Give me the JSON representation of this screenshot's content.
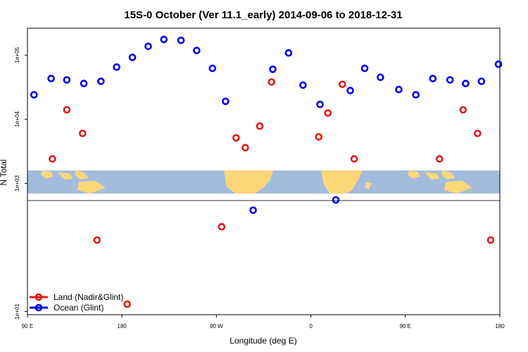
{
  "chart_data": {
    "type": "scatter",
    "title": "15S-0 October (Ver 11.1_early)   2014-09-06 to 2018-12-31",
    "xlabel": "Longitude (deg E)",
    "ylabel": "N Total",
    "y_scale": "log",
    "xlim": [
      90,
      450
    ],
    "ylim_log10": [
      0.95,
      5.42
    ],
    "x_ticks": [
      90,
      162,
      234,
      306,
      378,
      450
    ],
    "x_tick_labels": [
      "90 E",
      "180",
      "90 W",
      "0",
      "90 E",
      "180"
    ],
    "y_ticks": [
      10,
      1000,
      10000,
      100000
    ],
    "y_tick_labels": [
      "1e+01",
      "1e+03",
      "1e+04",
      "1e+05"
    ],
    "map_strip_log10": [
      2.84,
      3.2
    ],
    "colors": {
      "land": "#e41a1c",
      "ocean": "#0000ee",
      "map_ocean": "#a4bcdc",
      "map_land": "#fcd77a"
    },
    "legend": {
      "position": "bottom-left"
    },
    "series": [
      {
        "name": "Land (Nadir&Glint)",
        "color": "#e41a1c",
        "points": [
          [
            109,
            2400
          ],
          [
            120,
            14000
          ],
          [
            132,
            6000
          ],
          [
            143,
            130
          ],
          [
            166,
            13
          ],
          [
            238,
            210
          ],
          [
            249,
            5100
          ],
          [
            256,
            3600
          ],
          [
            267,
            7800
          ],
          [
            276,
            38000
          ],
          [
            312,
            5300
          ],
          [
            319,
            12500
          ],
          [
            330,
            35000
          ],
          [
            339,
            2400
          ],
          [
            404,
            2400
          ],
          [
            422,
            14000
          ],
          [
            433,
            6000
          ],
          [
            443,
            130
          ]
        ]
      },
      {
        "name": "Ocean (Glint)",
        "color": "#0000ee",
        "points": [
          [
            95,
            24000
          ],
          [
            108,
            43000
          ],
          [
            120,
            41000
          ],
          [
            133,
            36000
          ],
          [
            146,
            39000
          ],
          [
            158,
            65000
          ],
          [
            170,
            92000
          ],
          [
            182,
            137000
          ],
          [
            194,
            175000
          ],
          [
            207,
            170000
          ],
          [
            219,
            118000
          ],
          [
            231,
            62000
          ],
          [
            241,
            19000
          ],
          [
            262,
            380
          ],
          [
            277,
            60000
          ],
          [
            289,
            108000
          ],
          [
            300,
            34000
          ],
          [
            313,
            17000
          ],
          [
            325,
            550
          ],
          [
            336,
            28000
          ],
          [
            347,
            62000
          ],
          [
            359,
            45000
          ],
          [
            373,
            29000
          ],
          [
            386,
            24000
          ],
          [
            399,
            43000
          ],
          [
            412,
            41000
          ],
          [
            424,
            36000
          ],
          [
            436,
            39000
          ],
          [
            449,
            72000
          ]
        ]
      }
    ]
  }
}
